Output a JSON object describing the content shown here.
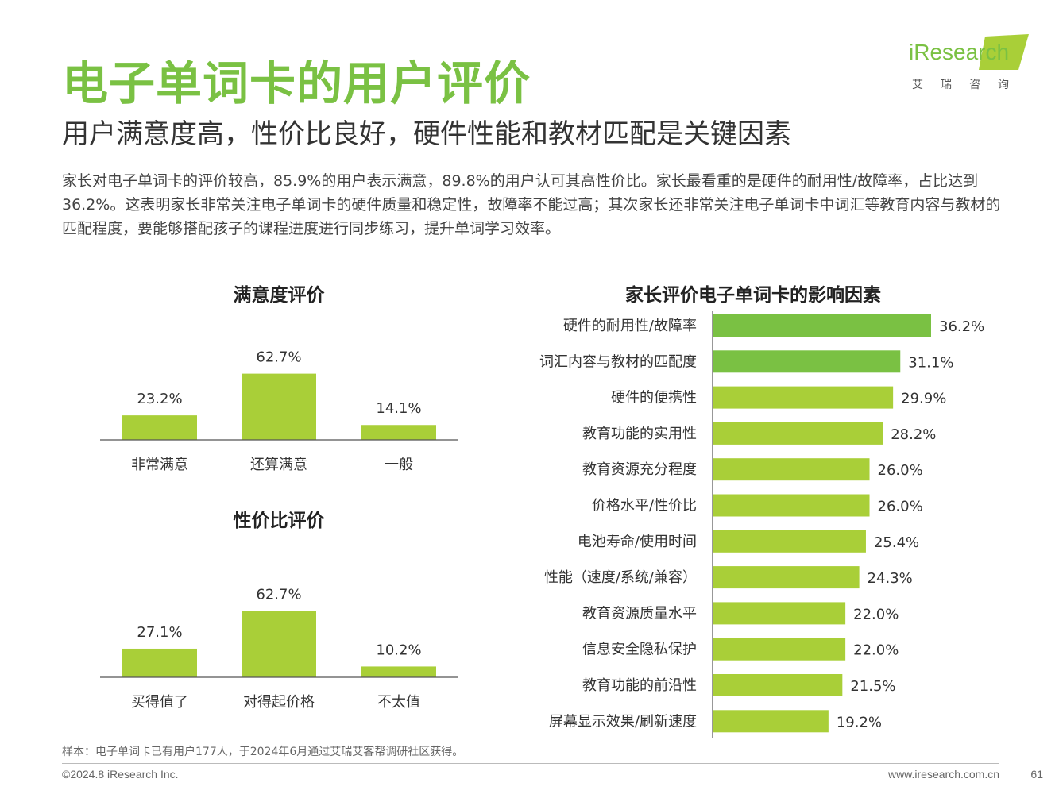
{
  "header": {
    "title": "电子单词卡的用户评价",
    "subtitle": "用户满意度高，性价比良好，硬件性能和教材匹配是关键因素"
  },
  "logo": {
    "brand": "iResearch",
    "subtitle": "艾瑞咨询"
  },
  "description": "家长对电子单词卡的评价较高，85.9%的用户表示满意，89.8%的用户认可其高性价比。家长最看重的是硬件的耐用性/故障率，占比达到36.2%。这表明家长非常关注电子单词卡的硬件质量和稳定性，故障率不能过高；其次家长还非常关注电子单词卡中词汇等教育内容与教材的匹配程度，要能够搭配孩子的课程进度进行同步练习，提升单词学习效率。",
  "colors": {
    "accent": "#7ac143",
    "bar_light": "#a9cf38",
    "bar_dark": "#7ac143"
  },
  "chart_data": [
    {
      "type": "bar",
      "title": "满意度评价",
      "categories": [
        "非常满意",
        "还算满意",
        "一般"
      ],
      "values": [
        23.2,
        62.7,
        14.1
      ],
      "labels": [
        "23.2%",
        "62.7%",
        "14.1%"
      ],
      "ylim": [
        0,
        100
      ]
    },
    {
      "type": "bar",
      "title": "性价比评价",
      "categories": [
        "买得值了",
        "对得起价格",
        "不太值"
      ],
      "values": [
        27.1,
        62.7,
        10.2
      ],
      "labels": [
        "27.1%",
        "62.7%",
        "10.2%"
      ],
      "ylim": [
        0,
        100
      ]
    },
    {
      "type": "bar",
      "orientation": "horizontal",
      "title": "家长评价电子单词卡的影响因素",
      "categories": [
        "硬件的耐用性/故障率",
        "词汇内容与教材的匹配度",
        "硬件的便携性",
        "教育功能的实用性",
        "教育资源充分程度",
        "价格水平/性价比",
        "电池寿命/使用时间",
        "性能（速度/系统/兼容）",
        "教育资源质量水平",
        "信息安全隐私保护",
        "教育功能的前沿性",
        "屏幕显示效果/刷新速度"
      ],
      "values": [
        36.2,
        31.1,
        29.9,
        28.2,
        26.0,
        26.0,
        25.4,
        24.3,
        22.0,
        22.0,
        21.5,
        19.2
      ],
      "labels": [
        "36.2%",
        "31.1%",
        "29.9%",
        "28.2%",
        "26.0%",
        "26.0%",
        "25.4%",
        "24.3%",
        "22.0%",
        "22.0%",
        "21.5%",
        "19.2%"
      ],
      "highlight_top": 2,
      "xlim": [
        0,
        40
      ]
    }
  ],
  "footer": {
    "note": "样本：电子单词卡已有用户177人，于2024年6月通过艾瑞艾客帮调研社区获得。",
    "copyright": "©2024.8 iResearch Inc.",
    "website": "www.iresearch.com.cn",
    "page": "61"
  }
}
